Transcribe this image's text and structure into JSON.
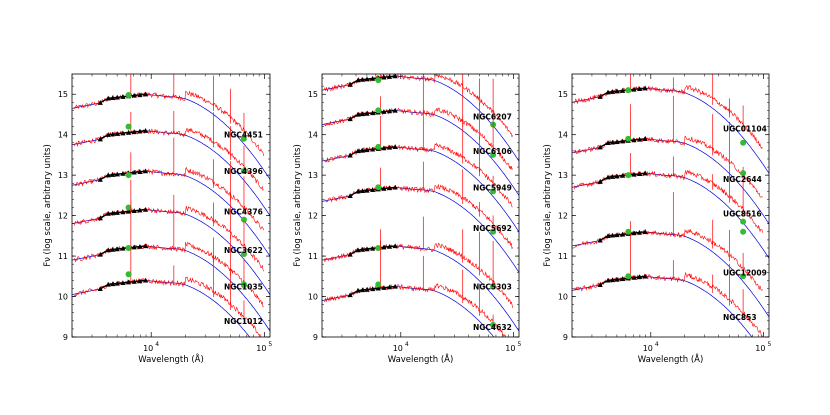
{
  "figure": {
    "description_colors": {
      "model": "#ff0000",
      "template": "#0000dd",
      "photometry": "#000000",
      "spectro": "#33bb33"
    }
  },
  "chart_data": [
    {
      "type": "line",
      "xlabel": "Wavelength (Å)",
      "ylabel": "Fν (log scale, arbitrary units)",
      "xlim_log10": [
        3.3,
        5.05
      ],
      "xticks": [
        {
          "value": 4,
          "label": "10",
          "exp": "4"
        },
        {
          "value": 5,
          "label": "10",
          "exp": "5"
        }
      ],
      "ylim": [
        9,
        15.5
      ],
      "yticks": [
        "9",
        "10",
        "11",
        "12",
        "13",
        "14",
        "15"
      ],
      "galaxies": [
        {
          "name": "NGC4451",
          "level": 15.0,
          "green": [
            14.98,
            13.9
          ]
        },
        {
          "name": "NGC4396",
          "level": 14.1,
          "green": [
            14.2,
            13.1
          ]
        },
        {
          "name": "NGC4376",
          "level": 13.1,
          "green": [
            13.0,
            11.9
          ]
        },
        {
          "name": "NGC3622",
          "level": 12.15,
          "green": [
            12.2,
            11.05
          ]
        },
        {
          "name": "NGC1035",
          "level": 11.25,
          "green": [
            11.2,
            10.3
          ]
        },
        {
          "name": "NGC1012",
          "level": 10.4,
          "green": [
            10.55,
            10.28
          ]
        }
      ]
    },
    {
      "type": "line",
      "xlabel": "Wavelength (Å)",
      "ylabel": "Fν (log scale, arbitrary units)",
      "xlim_log10": [
        3.3,
        5.05
      ],
      "xticks": [
        {
          "value": 4,
          "label": "10",
          "exp": "4"
        },
        {
          "value": 5,
          "label": "10",
          "exp": "5"
        }
      ],
      "ylim": [
        9,
        15.5
      ],
      "yticks": [
        "9",
        "10",
        "11",
        "12",
        "13",
        "14",
        "15"
      ],
      "galaxies": [
        {
          "name": "NGC6207",
          "level": 15.45,
          "green": [
            15.35,
            14.25
          ]
        },
        {
          "name": "NGC6106",
          "level": 14.6,
          "green": [
            14.6,
            13.5
          ]
        },
        {
          "name": "NGC5949",
          "level": 13.7,
          "green": [
            13.7,
            12.6
          ]
        },
        {
          "name": "NGC5692",
          "level": 12.7,
          "green": [
            12.7,
            11.6
          ]
        },
        {
          "name": "NGC5303",
          "level": 11.25,
          "green": [
            11.2,
            10.25
          ]
        },
        {
          "name": "NGC4632",
          "level": 10.25,
          "green": [
            10.3,
            9.3
          ]
        }
      ]
    },
    {
      "type": "line",
      "xlabel": "Wavelength (Å)",
      "ylabel": "Fν (log scale, arbitrary units)",
      "xlim_log10": [
        3.3,
        5.05
      ],
      "xticks": [
        {
          "value": 4,
          "label": "10",
          "exp": "4"
        },
        {
          "value": 5,
          "label": "10",
          "exp": "5"
        }
      ],
      "ylim": [
        9,
        15.5
      ],
      "yticks": [
        "9",
        "10",
        "11",
        "12",
        "13",
        "14",
        "15"
      ],
      "galaxies": [
        {
          "name": "UGC01104",
          "level": 15.15,
          "green": [
            15.1,
            13.8
          ]
        },
        {
          "name": "NGC2644",
          "level": 13.9,
          "green": [
            13.9,
            13.05
          ]
        },
        {
          "name": "UGC8516",
          "level": 13.05,
          "green": [
            13.0,
            11.85
          ]
        },
        {
          "name": "UGC12009",
          "level": 11.6,
          "green": [
            11.6,
            11.6
          ]
        },
        {
          "name": "NGC853",
          "level": 10.5,
          "green": [
            10.5,
            10.5
          ]
        }
      ]
    }
  ]
}
